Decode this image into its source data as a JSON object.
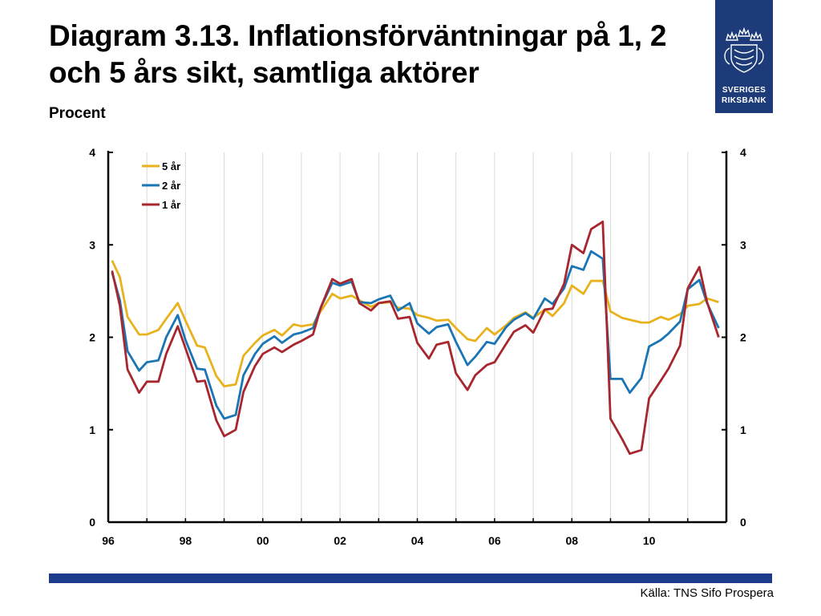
{
  "header": {
    "title": "Diagram 3.13. Inflationsförväntningar på 1, 2 och 5 års sikt, samtliga aktörer",
    "subtitle": "Procent"
  },
  "logo": {
    "line1": "SVERIGES",
    "line2": "RIKSBANK",
    "icon": "crown-seal-icon",
    "color": "#1c3b78"
  },
  "footer": {
    "source": "Källa: TNS Sifo Prospera",
    "bar_color": "#1c3b8c"
  },
  "chart_data": {
    "type": "line",
    "title": "",
    "xlabel": "",
    "ylabel": "",
    "xlim": [
      1996,
      2012
    ],
    "ylim": [
      0,
      4
    ],
    "x_ticks": [
      "96",
      "98",
      "00",
      "02",
      "04",
      "06",
      "08",
      "10"
    ],
    "y_ticks_left": [
      "0",
      "1",
      "2",
      "3",
      "4"
    ],
    "y_ticks_right": [
      "0",
      "1",
      "2",
      "3",
      "4"
    ],
    "grid": "vertical",
    "legend_position": "top-left",
    "series": [
      {
        "name": "5 år",
        "color": "#e8b21c",
        "x": [
          1996.1,
          1996.3,
          1996.5,
          1996.8,
          1997.0,
          1997.3,
          1997.5,
          1997.8,
          1998.0,
          1998.3,
          1998.5,
          1998.8,
          1999.0,
          1999.3,
          1999.5,
          1999.8,
          2000.0,
          2000.3,
          2000.5,
          2000.8,
          2001.0,
          2001.3,
          2001.5,
          2001.8,
          2002.0,
          2002.3,
          2002.5,
          2002.8,
          2003.0,
          2003.3,
          2003.5,
          2003.8,
          2004.0,
          2004.3,
          2004.5,
          2004.8,
          2005.0,
          2005.3,
          2005.5,
          2005.8,
          2006.0,
          2006.3,
          2006.5,
          2006.8,
          2007.0,
          2007.3,
          2007.5,
          2007.8,
          2008.0,
          2008.3,
          2008.5,
          2008.8,
          2009.0,
          2009.3,
          2009.5,
          2009.8,
          2010.0,
          2010.3,
          2010.5,
          2010.8,
          2011.0,
          2011.3,
          2011.5,
          2011.8
        ],
        "y": [
          2.83,
          2.65,
          2.22,
          2.03,
          2.03,
          2.08,
          2.2,
          2.37,
          2.18,
          1.91,
          1.89,
          1.58,
          1.47,
          1.49,
          1.8,
          1.94,
          2.02,
          2.08,
          2.02,
          2.14,
          2.12,
          2.14,
          2.28,
          2.47,
          2.42,
          2.45,
          2.4,
          2.33,
          2.37,
          2.38,
          2.32,
          2.31,
          2.24,
          2.21,
          2.18,
          2.19,
          2.1,
          1.98,
          1.96,
          2.1,
          2.03,
          2.13,
          2.21,
          2.27,
          2.21,
          2.3,
          2.23,
          2.37,
          2.56,
          2.47,
          2.61,
          2.61,
          2.28,
          2.21,
          2.19,
          2.16,
          2.16,
          2.22,
          2.19,
          2.25,
          2.34,
          2.36,
          2.42,
          2.38
        ]
      },
      {
        "name": "2 år",
        "color": "#1a75b5",
        "x": [
          1996.1,
          1996.3,
          1996.5,
          1996.8,
          1997.0,
          1997.3,
          1997.5,
          1997.8,
          1998.0,
          1998.3,
          1998.5,
          1998.8,
          1999.0,
          1999.3,
          1999.5,
          1999.8,
          2000.0,
          2000.3,
          2000.5,
          2000.8,
          2001.0,
          2001.3,
          2001.5,
          2001.8,
          2002.0,
          2002.3,
          2002.5,
          2002.8,
          2003.0,
          2003.3,
          2003.5,
          2003.8,
          2004.0,
          2004.3,
          2004.5,
          2004.8,
          2005.0,
          2005.3,
          2005.5,
          2005.8,
          2006.0,
          2006.3,
          2006.5,
          2006.8,
          2007.0,
          2007.3,
          2007.5,
          2007.8,
          2008.0,
          2008.3,
          2008.5,
          2008.8,
          2009.0,
          2009.3,
          2009.5,
          2009.8,
          2010.0,
          2010.3,
          2010.5,
          2010.8,
          2011.0,
          2011.3,
          2011.5,
          2011.8
        ],
        "y": [
          2.7,
          2.4,
          1.85,
          1.64,
          1.73,
          1.75,
          2.0,
          2.24,
          1.97,
          1.66,
          1.65,
          1.26,
          1.12,
          1.16,
          1.59,
          1.82,
          1.93,
          2.01,
          1.94,
          2.03,
          2.05,
          2.1,
          2.32,
          2.59,
          2.56,
          2.6,
          2.38,
          2.37,
          2.41,
          2.45,
          2.29,
          2.37,
          2.15,
          2.04,
          2.11,
          2.14,
          1.95,
          1.7,
          1.79,
          1.95,
          1.93,
          2.11,
          2.19,
          2.26,
          2.2,
          2.42,
          2.36,
          2.53,
          2.77,
          2.73,
          2.93,
          2.85,
          1.55,
          1.55,
          1.4,
          1.56,
          1.9,
          1.97,
          2.04,
          2.17,
          2.52,
          2.62,
          2.37,
          2.1
        ]
      },
      {
        "name": "1 år",
        "color": "#a8262e",
        "x": [
          1996.1,
          1996.3,
          1996.5,
          1996.8,
          1997.0,
          1997.3,
          1997.5,
          1997.8,
          1998.0,
          1998.3,
          1998.5,
          1998.8,
          1999.0,
          1999.3,
          1999.5,
          1999.8,
          2000.0,
          2000.3,
          2000.5,
          2000.8,
          2001.0,
          2001.3,
          2001.5,
          2001.8,
          2002.0,
          2002.3,
          2002.5,
          2002.8,
          2003.0,
          2003.3,
          2003.5,
          2003.8,
          2004.0,
          2004.3,
          2004.5,
          2004.8,
          2005.0,
          2005.3,
          2005.5,
          2005.8,
          2006.0,
          2006.3,
          2006.5,
          2006.8,
          2007.0,
          2007.3,
          2007.5,
          2007.8,
          2008.0,
          2008.3,
          2008.5,
          2008.8,
          2009.0,
          2009.3,
          2009.5,
          2009.8,
          2010.0,
          2010.3,
          2010.5,
          2010.8,
          2011.0,
          2011.3,
          2011.5,
          2011.8
        ],
        "y": [
          2.72,
          2.34,
          1.65,
          1.4,
          1.52,
          1.52,
          1.82,
          2.12,
          1.88,
          1.52,
          1.53,
          1.1,
          0.93,
          1.0,
          1.41,
          1.69,
          1.82,
          1.89,
          1.84,
          1.92,
          1.96,
          2.03,
          2.32,
          2.63,
          2.58,
          2.63,
          2.37,
          2.29,
          2.37,
          2.39,
          2.2,
          2.22,
          1.94,
          1.77,
          1.92,
          1.95,
          1.61,
          1.43,
          1.59,
          1.7,
          1.73,
          1.93,
          2.06,
          2.13,
          2.05,
          2.3,
          2.31,
          2.58,
          3.0,
          2.91,
          3.17,
          3.25,
          1.12,
          0.9,
          0.74,
          0.78,
          1.34,
          1.53,
          1.66,
          1.91,
          2.53,
          2.76,
          2.38,
          2.0
        ]
      }
    ]
  }
}
